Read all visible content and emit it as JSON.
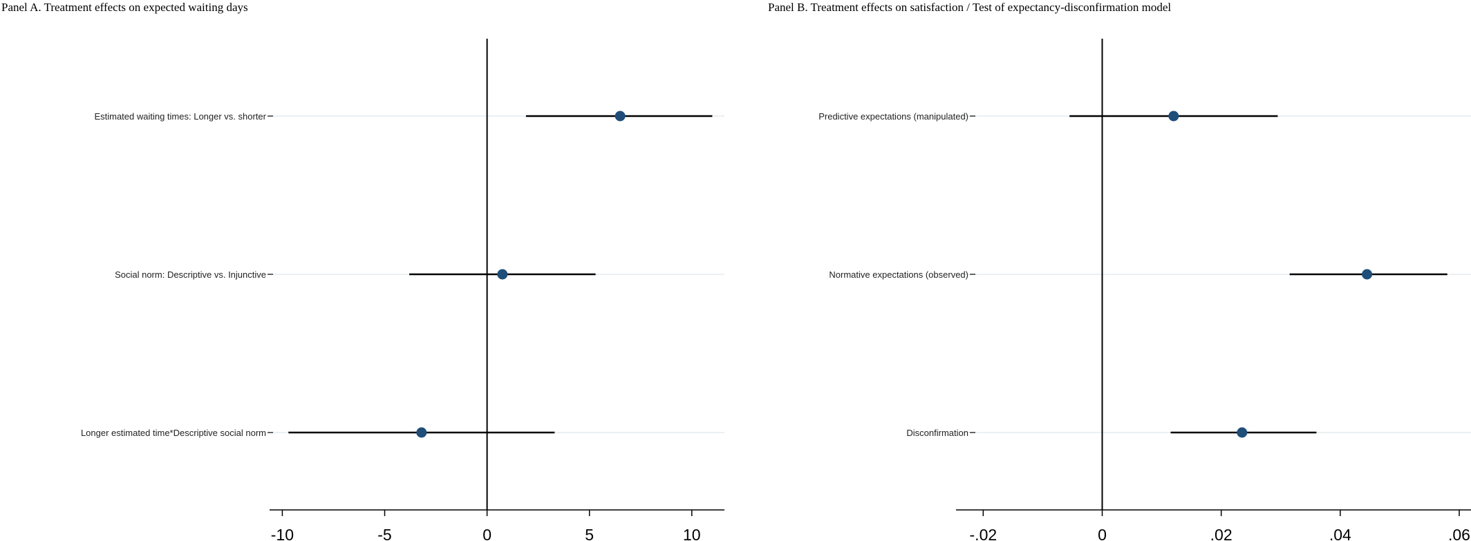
{
  "chart_data": [
    {
      "type": "scatter",
      "title": "Panel A. Treatment effects on expected waiting days",
      "xlabel": "",
      "ylabel": "",
      "xlim": [
        -10.5,
        11.5
      ],
      "xticks": [
        -10,
        -5,
        0,
        5,
        10
      ],
      "xtick_labels": [
        "-10",
        "-5",
        "0",
        "5",
        "10"
      ],
      "reference_line": 0,
      "categories": [
        "Estimated waiting times: Longer vs. shorter",
        "Social norm: Descriptive vs. Injunctive",
        "Longer estimated time*Descriptive social norm"
      ],
      "points": [
        {
          "estimate": 6.5,
          "ci_low": 1.9,
          "ci_high": 11.0
        },
        {
          "estimate": 0.75,
          "ci_low": -3.8,
          "ci_high": 5.3
        },
        {
          "estimate": -3.2,
          "ci_low": -9.7,
          "ci_high": 3.3
        }
      ],
      "grid": "horizontal",
      "colors": {
        "marker": "#1f4e79",
        "grid": "#e3ecef",
        "ci": "#000000"
      }
    },
    {
      "type": "scatter",
      "title": "Panel B. Treatment effects on satisfaction / Test of expectancy-disconfirmation model",
      "xlabel": "",
      "ylabel": "",
      "xlim": [
        -0.0225,
        0.0605
      ],
      "xticks": [
        -0.02,
        0,
        0.02,
        0.04,
        0.06
      ],
      "xtick_labels": [
        "-.02",
        "0",
        ".02",
        ".04",
        ".06"
      ],
      "reference_line": 0,
      "categories": [
        "Predictive expectations (manipulated)",
        "Normative expectations (observed)",
        "Disconfirmation"
      ],
      "points": [
        {
          "estimate": 0.012,
          "ci_low": -0.0055,
          "ci_high": 0.0295
        },
        {
          "estimate": 0.0445,
          "ci_low": 0.0315,
          "ci_high": 0.058
        },
        {
          "estimate": 0.0235,
          "ci_low": 0.0115,
          "ci_high": 0.036
        }
      ],
      "grid": "horizontal",
      "colors": {
        "marker": "#1f4e79",
        "grid": "#e3ecef",
        "ci": "#000000"
      }
    }
  ]
}
